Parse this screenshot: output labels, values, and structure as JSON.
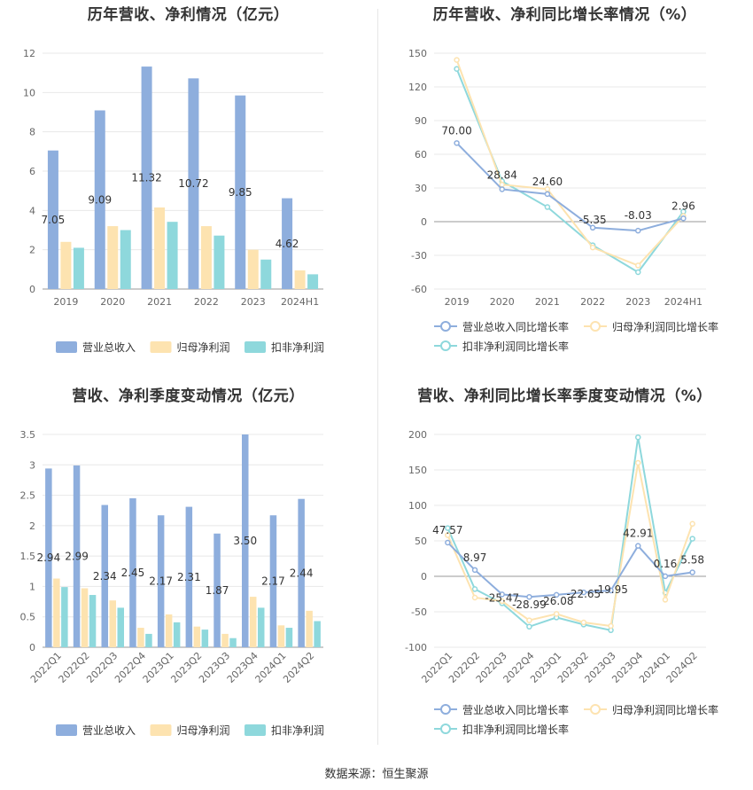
{
  "charts": [
    {
      "title": "历年营收、净利情况（亿元）",
      "type": "bar",
      "categories": [
        "2019",
        "2020",
        "2021",
        "2022",
        "2023",
        "2024H1"
      ],
      "series": [
        {
          "name": "营业总收入",
          "color": "#8eaedd",
          "values": [
            7.05,
            9.09,
            11.32,
            10.72,
            9.85,
            4.62
          ]
        },
        {
          "name": "归母净利润",
          "color": "#fde3b0",
          "values": [
            2.4,
            3.2,
            4.15,
            3.2,
            2.0,
            0.95
          ]
        },
        {
          "name": "扣非净利润",
          "color": "#8ed8dc",
          "values": [
            2.1,
            3.0,
            3.42,
            2.72,
            1.5,
            0.75
          ]
        }
      ],
      "data_labels": [
        "7.05",
        "9.09",
        "11.32",
        "10.72",
        "9.85",
        "4.62"
      ],
      "y_ticks": [
        "0",
        "2",
        "4",
        "6",
        "8",
        "10",
        "12"
      ],
      "ylim": [
        0,
        12
      ]
    },
    {
      "title": "历年营收、净利同比增长率情况（%）",
      "type": "line",
      "categories": [
        "2019",
        "2020",
        "2021",
        "2022",
        "2023",
        "2024H1"
      ],
      "series": [
        {
          "name": "营业总收入同比增长率",
          "color": "#8eaedd",
          "values": [
            70.0,
            28.84,
            24.6,
            -5.35,
            -8.03,
            2.96
          ]
        },
        {
          "name": "归母净利润同比增长率",
          "color": "#fde3b0",
          "values": [
            144,
            33,
            29,
            -23,
            -39,
            5
          ]
        },
        {
          "name": "扣非净利润同比增长率",
          "color": "#8ed8dc",
          "values": [
            136,
            36,
            13,
            -21,
            -45,
            9
          ]
        }
      ],
      "data_labels": [
        "70.00",
        "28.84",
        "24.60",
        "-5.35",
        "-8.03",
        "2.96"
      ],
      "y_ticks": [
        "-60",
        "-30",
        "0",
        "30",
        "60",
        "90",
        "120",
        "150"
      ],
      "ylim": [
        -60,
        150
      ]
    },
    {
      "title": "营收、净利季度变动情况（亿元）",
      "type": "bar",
      "categories": [
        "2022Q1",
        "2022Q2",
        "2022Q3",
        "2022Q4",
        "2023Q1",
        "2023Q2",
        "2023Q3",
        "2023Q4",
        "2024Q1",
        "2024Q2"
      ],
      "series": [
        {
          "name": "营业总收入",
          "color": "#8eaedd",
          "values": [
            2.94,
            2.99,
            2.34,
            2.45,
            2.17,
            2.31,
            1.87,
            3.5,
            2.17,
            2.44
          ]
        },
        {
          "name": "归母净利润",
          "color": "#fde3b0",
          "values": [
            1.13,
            0.97,
            0.77,
            0.32,
            0.54,
            0.34,
            0.22,
            0.83,
            0.36,
            0.6
          ]
        },
        {
          "name": "扣非净利润",
          "color": "#8ed8dc",
          "values": [
            0.99,
            0.86,
            0.65,
            0.22,
            0.41,
            0.29,
            0.15,
            0.65,
            0.32,
            0.43
          ]
        }
      ],
      "data_labels": [
        "2.94",
        "2.99",
        "2.34",
        "2.45",
        "2.17",
        "2.31",
        "1.87",
        "3.50",
        "2.17",
        "2.44"
      ],
      "y_ticks": [
        "0",
        "0.5",
        "1",
        "1.5",
        "2",
        "2.5",
        "3",
        "3.5"
      ],
      "ylim": [
        0,
        3.5
      ]
    },
    {
      "title": "营收、净利同比增长率季度变动情况（%）",
      "type": "line",
      "categories": [
        "2022Q1",
        "2022Q2",
        "2022Q3",
        "2022Q4",
        "2023Q1",
        "2023Q2",
        "2023Q3",
        "2023Q4",
        "2024Q1",
        "2024Q2"
      ],
      "series": [
        {
          "name": "营业总收入同比增长率",
          "color": "#8eaedd",
          "values": [
            47.57,
            8.97,
            -25.47,
            -28.99,
            -26.08,
            -22.65,
            -19.95,
            42.91,
            0.16,
            5.58
          ]
        },
        {
          "name": "归母净利润同比增长率",
          "color": "#fde3b0",
          "values": [
            58,
            -30,
            -35,
            -62,
            -53,
            -65,
            -70,
            160,
            -33,
            74
          ]
        },
        {
          "name": "扣非净利润同比增长率",
          "color": "#8ed8dc",
          "values": [
            68,
            -18,
            -38,
            -71,
            -58,
            -68,
            -76,
            196,
            -23,
            53
          ]
        }
      ],
      "data_labels": [
        "47.57",
        "8.97",
        "-25.47",
        "-28.99",
        "-26.08",
        "-22.65",
        "-19.95",
        "42.91",
        "0.16",
        "5.58"
      ],
      "y_ticks": [
        "-100",
        "-50",
        "0",
        "50",
        "100",
        "150",
        "200"
      ],
      "ylim": [
        -100,
        200
      ]
    }
  ],
  "source": "数据来源：恒生聚源"
}
